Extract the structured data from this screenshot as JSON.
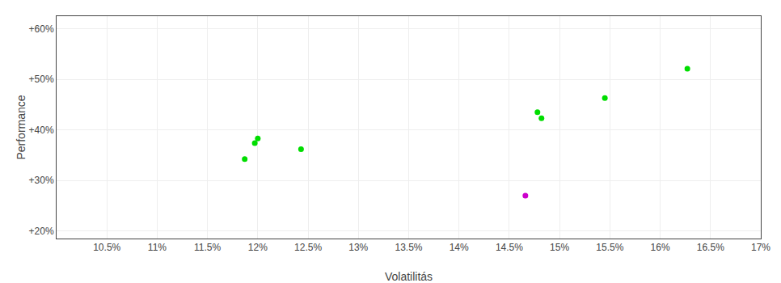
{
  "chart_data": {
    "type": "scatter",
    "xlabel": "Volatilitás",
    "ylabel": "Performance",
    "series": [
      {
        "color": "#00dd00",
        "x": [
          0.12,
          0.1197,
          0.1187,
          0.1243,
          0.1478,
          0.1482,
          0.1545,
          0.1627
        ],
        "values": [
          0.383,
          0.374,
          0.342,
          0.362,
          0.435,
          0.423,
          0.463,
          0.521
        ]
      },
      {
        "color": "#cc00cc",
        "x": [
          0.1466
        ],
        "values": [
          0.27
        ]
      }
    ],
    "xlim": [
      0.1,
      0.17
    ],
    "ylim": [
      0.185,
      0.625
    ],
    "xticks": [
      {
        "value": 0.105,
        "label": "10.5%"
      },
      {
        "value": 0.11,
        "label": "11%"
      },
      {
        "value": 0.115,
        "label": "11.5%"
      },
      {
        "value": 0.12,
        "label": "12%"
      },
      {
        "value": 0.125,
        "label": "12.5%"
      },
      {
        "value": 0.13,
        "label": "13%"
      },
      {
        "value": 0.135,
        "label": "13.5%"
      },
      {
        "value": 0.14,
        "label": "14%"
      },
      {
        "value": 0.145,
        "label": "14.5%"
      },
      {
        "value": 0.15,
        "label": "15%"
      },
      {
        "value": 0.155,
        "label": "15.5%"
      },
      {
        "value": 0.16,
        "label": "16%"
      },
      {
        "value": 0.165,
        "label": "16.5%"
      },
      {
        "value": 0.17,
        "label": "17%"
      }
    ],
    "yticks": [
      {
        "value": 0.2,
        "label": "+20%"
      },
      {
        "value": 0.3,
        "label": "+30%"
      },
      {
        "value": 0.4,
        "label": "+40%"
      },
      {
        "value": 0.5,
        "label": "+50%"
      },
      {
        "value": 0.6,
        "label": "+60%"
      }
    ],
    "grid": true
  }
}
